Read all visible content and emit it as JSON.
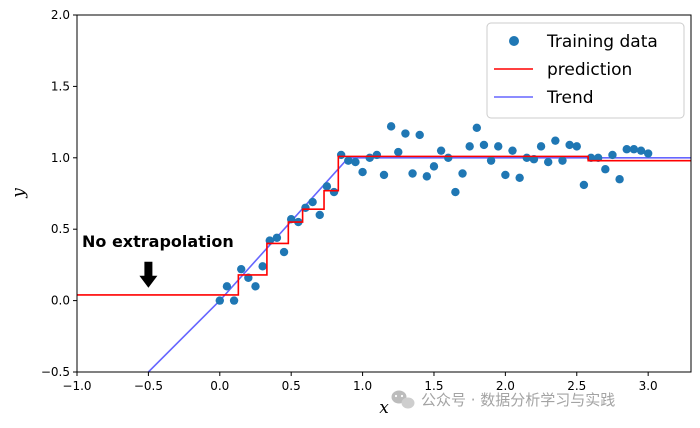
{
  "chart_data": {
    "type": "scatter",
    "xlabel": "x",
    "ylabel": "y",
    "xlim": [
      -1.0,
      3.3
    ],
    "ylim": [
      -0.5,
      2.0
    ],
    "xticks": [
      -1.0,
      -0.5,
      0.0,
      0.5,
      1.0,
      1.5,
      2.0,
      2.5,
      3.0
    ],
    "xtick_labels": [
      "−1.0",
      "−0.5",
      "0.0",
      "0.5",
      "1.0",
      "1.5",
      "2.0",
      "2.5",
      "3.0"
    ],
    "yticks": [
      -0.5,
      0.0,
      0.5,
      1.0,
      1.5,
      2.0
    ],
    "ytick_labels": [
      "−0.5",
      "0.0",
      "0.5",
      "1.0",
      "1.5",
      "2.0"
    ],
    "grid": false,
    "legend_position": "top-right",
    "series": [
      {
        "name": "Training data",
        "kind": "scatter",
        "color": "#1f77b4",
        "points": [
          [
            0.0,
            0.0
          ],
          [
            0.05,
            0.1
          ],
          [
            0.1,
            0.0
          ],
          [
            0.15,
            0.22
          ],
          [
            0.2,
            0.16
          ],
          [
            0.25,
            0.1
          ],
          [
            0.3,
            0.24
          ],
          [
            0.35,
            0.42
          ],
          [
            0.4,
            0.44
          ],
          [
            0.45,
            0.34
          ],
          [
            0.5,
            0.57
          ],
          [
            0.55,
            0.55
          ],
          [
            0.6,
            0.65
          ],
          [
            0.65,
            0.69
          ],
          [
            0.7,
            0.6
          ],
          [
            0.75,
            0.8
          ],
          [
            0.8,
            0.76
          ],
          [
            0.85,
            1.02
          ],
          [
            0.9,
            0.98
          ],
          [
            0.95,
            0.97
          ],
          [
            1.0,
            0.9
          ],
          [
            1.05,
            1.0
          ],
          [
            1.1,
            1.02
          ],
          [
            1.15,
            0.88
          ],
          [
            1.2,
            1.22
          ],
          [
            1.25,
            1.04
          ],
          [
            1.3,
            1.17
          ],
          [
            1.35,
            0.89
          ],
          [
            1.4,
            1.16
          ],
          [
            1.45,
            0.87
          ],
          [
            1.5,
            0.94
          ],
          [
            1.55,
            1.05
          ],
          [
            1.6,
            1.0
          ],
          [
            1.65,
            0.76
          ],
          [
            1.7,
            0.89
          ],
          [
            1.75,
            1.08
          ],
          [
            1.8,
            1.21
          ],
          [
            1.85,
            1.09
          ],
          [
            1.9,
            0.98
          ],
          [
            1.95,
            1.08
          ],
          [
            2.0,
            0.88
          ],
          [
            2.05,
            1.05
          ],
          [
            2.1,
            0.86
          ],
          [
            2.15,
            1.0
          ],
          [
            2.2,
            0.99
          ],
          [
            2.25,
            1.08
          ],
          [
            2.3,
            0.97
          ],
          [
            2.35,
            1.12
          ],
          [
            2.4,
            0.98
          ],
          [
            2.45,
            1.09
          ],
          [
            2.5,
            1.08
          ],
          [
            2.55,
            0.81
          ],
          [
            2.6,
            1.0
          ],
          [
            2.65,
            1.0
          ],
          [
            2.7,
            0.92
          ],
          [
            2.75,
            1.02
          ],
          [
            2.8,
            0.85
          ],
          [
            2.85,
            1.06
          ],
          [
            2.9,
            1.06
          ],
          [
            2.95,
            1.05
          ],
          [
            3.0,
            1.03
          ]
        ]
      },
      {
        "name": "prediction",
        "kind": "step",
        "color": "#ff0000",
        "points": [
          [
            -1.0,
            0.04
          ],
          [
            0.13,
            0.04
          ],
          [
            0.13,
            0.18
          ],
          [
            0.33,
            0.18
          ],
          [
            0.33,
            0.4
          ],
          [
            0.48,
            0.4
          ],
          [
            0.48,
            0.55
          ],
          [
            0.58,
            0.55
          ],
          [
            0.58,
            0.64
          ],
          [
            0.73,
            0.64
          ],
          [
            0.73,
            0.77
          ],
          [
            0.83,
            0.77
          ],
          [
            0.83,
            1.01
          ],
          [
            2.58,
            1.01
          ],
          [
            2.58,
            0.98
          ],
          [
            3.3,
            0.98
          ]
        ]
      },
      {
        "name": "Trend",
        "kind": "line",
        "color": "#6666ff",
        "points": [
          [
            -0.5,
            -0.5
          ],
          [
            0.0,
            0.0
          ],
          [
            0.9,
            1.0
          ],
          [
            3.3,
            1.0
          ]
        ]
      }
    ],
    "annotations": [
      {
        "text": "No extrapolation",
        "arrow_target": [
          -0.5,
          0.09
        ]
      }
    ]
  },
  "watermark": {
    "text": "公众号 · 数据分析学习与实践",
    "icon": "wechat-icon"
  }
}
